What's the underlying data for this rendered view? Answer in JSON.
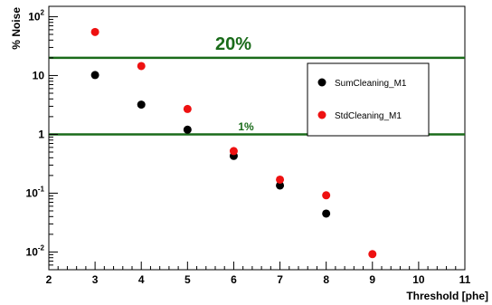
{
  "chart_data": {
    "type": "scatter",
    "title": "",
    "xlabel": "Threshold [phe]",
    "ylabel": "% Noise",
    "xlim": [
      2,
      11
    ],
    "ylim": [
      0.005,
      150
    ],
    "yscale": "log",
    "x_ticks": [
      2,
      3,
      4,
      5,
      6,
      7,
      8,
      9,
      10,
      11
    ],
    "y_ticks": [
      {
        "value": 0.01,
        "base": "10",
        "exp": "-2"
      },
      {
        "value": 0.1,
        "base": "10",
        "exp": "-1"
      },
      {
        "value": 1,
        "base": "1",
        "exp": ""
      },
      {
        "value": 10,
        "base": "10",
        "exp": ""
      },
      {
        "value": 100,
        "base": "10",
        "exp": "2"
      }
    ],
    "grid": false,
    "legend_position": "top-right",
    "series": [
      {
        "name": "SumCleaning_M1",
        "color": "#000000",
        "x": [
          3,
          4,
          5,
          6,
          7,
          8
        ],
        "y": [
          10.2,
          3.2,
          1.2,
          0.43,
          0.135,
          0.045
        ]
      },
      {
        "name": "StdCleaning_M1",
        "color": "#ee1111",
        "x": [
          3,
          4,
          5,
          6,
          7,
          8,
          9
        ],
        "y": [
          55,
          14.5,
          2.7,
          0.52,
          0.17,
          0.092,
          0.0092
        ]
      }
    ],
    "reference_lines": [
      {
        "y": 20,
        "label": "20%",
        "color": "#1a6b1a"
      },
      {
        "y": 1,
        "label": "1%",
        "color": "#1a6b1a"
      }
    ]
  }
}
